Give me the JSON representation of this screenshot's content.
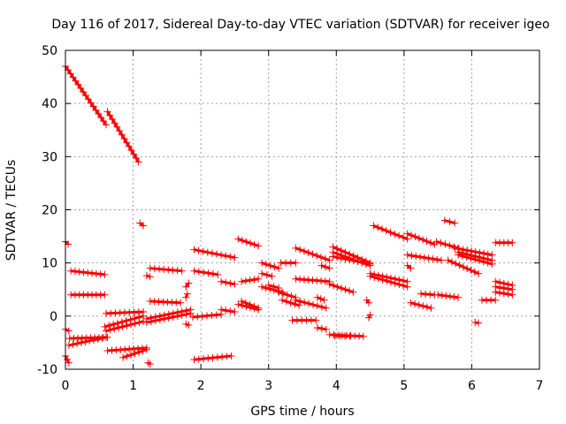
{
  "chart_data": {
    "type": "scatter",
    "title": "Day 116 of 2017, Sidereal Day-to-day VTEC variation (SDTVAR) for receiver igeo",
    "xlabel": "GPS time / hours",
    "ylabel": "SDTVAR / TECUs",
    "xlim": [
      0,
      7
    ],
    "ylim": [
      -10,
      50
    ],
    "xticks": [
      0,
      1,
      2,
      3,
      4,
      5,
      6,
      7
    ],
    "yticks": [
      -10,
      0,
      10,
      20,
      30,
      40,
      50
    ],
    "xtick_labels": [
      "0",
      "1",
      "2",
      "3",
      "4",
      "5",
      "6",
      "7"
    ],
    "ytick_labels": [
      "-10",
      "0",
      "10",
      "20",
      "30",
      "40",
      "50"
    ],
    "grid": true,
    "marker": "plus",
    "color": "#ff0000",
    "segments": [
      {
        "x": [
          0.0,
          0.6
        ],
        "y": [
          47,
          36
        ]
      },
      {
        "x": [
          0.62,
          1.08
        ],
        "y": [
          38.5,
          29
        ]
      },
      {
        "x": [
          0.0,
          0.04
        ],
        "y": [
          14,
          13.5
        ]
      },
      {
        "x": [
          0.08,
          0.58
        ],
        "y": [
          8.5,
          7.8
        ]
      },
      {
        "x": [
          0.08,
          0.58
        ],
        "y": [
          4.0,
          4.0
        ]
      },
      {
        "x": [
          0.0,
          0.05
        ],
        "y": [
          -2.5,
          -2.8
        ]
      },
      {
        "x": [
          0.0,
          0.05
        ],
        "y": [
          -7.5,
          -8.8
        ]
      },
      {
        "x": [
          0.05,
          0.6
        ],
        "y": [
          -5.5,
          -4.0
        ]
      },
      {
        "x": [
          0.06,
          0.62
        ],
        "y": [
          -4.2,
          -4.0
        ]
      },
      {
        "x": [
          0.6,
          1.15
        ],
        "y": [
          -2.8,
          -1.0
        ]
      },
      {
        "x": [
          0.58,
          1.15
        ],
        "y": [
          -2.0,
          0.0
        ]
      },
      {
        "x": [
          0.6,
          1.15
        ],
        "y": [
          0.5,
          0.8
        ]
      },
      {
        "x": [
          0.62,
          1.2
        ],
        "y": [
          -6.5,
          -6.0
        ]
      },
      {
        "x": [
          0.85,
          1.2
        ],
        "y": [
          -7.8,
          -6.3
        ]
      },
      {
        "x": [
          1.1,
          1.15
        ],
        "y": [
          17.5,
          17.0
        ]
      },
      {
        "x": [
          1.22,
          1.25
        ],
        "y": [
          -8.8,
          -9.0
        ]
      },
      {
        "x": [
          1.2,
          1.85
        ],
        "y": [
          -1.2,
          0.5
        ]
      },
      {
        "x": [
          1.2,
          1.85
        ],
        "y": [
          -0.5,
          1.2
        ]
      },
      {
        "x": [
          1.25,
          1.7
        ],
        "y": [
          2.8,
          2.5
        ]
      },
      {
        "x": [
          1.25,
          1.72
        ],
        "y": [
          9.0,
          8.5
        ]
      },
      {
        "x": [
          1.2,
          1.25
        ],
        "y": [
          7.6,
          7.4
        ]
      },
      {
        "x": [
          1.78,
          1.8
        ],
        "y": [
          3.5,
          4.2
        ]
      },
      {
        "x": [
          1.78,
          1.82
        ],
        "y": [
          5.5,
          6.2
        ]
      },
      {
        "x": [
          1.78,
          1.82
        ],
        "y": [
          -1.5,
          -1.7
        ]
      },
      {
        "x": [
          1.88,
          2.3
        ],
        "y": [
          -0.2,
          0.3
        ]
      },
      {
        "x": [
          1.9,
          2.45
        ],
        "y": [
          -8.2,
          -7.5
        ]
      },
      {
        "x": [
          1.9,
          2.25
        ],
        "y": [
          8.5,
          7.8
        ]
      },
      {
        "x": [
          1.9,
          2.5
        ],
        "y": [
          12.5,
          11.0
        ]
      },
      {
        "x": [
          2.3,
          2.5
        ],
        "y": [
          6.5,
          6.0
        ]
      },
      {
        "x": [
          2.3,
          2.5
        ],
        "y": [
          1.2,
          0.8
        ]
      },
      {
        "x": [
          2.55,
          2.85
        ],
        "y": [
          14.5,
          13.2
        ]
      },
      {
        "x": [
          2.6,
          2.85
        ],
        "y": [
          6.5,
          7.0
        ]
      },
      {
        "x": [
          2.6,
          2.85
        ],
        "y": [
          2.8,
          1.5
        ]
      },
      {
        "x": [
          2.55,
          2.85
        ],
        "y": [
          2.2,
          1.2
        ]
      },
      {
        "x": [
          2.9,
          3.15
        ],
        "y": [
          10.0,
          9.0
        ]
      },
      {
        "x": [
          2.9,
          3.05
        ],
        "y": [
          8.0,
          7.5
        ]
      },
      {
        "x": [
          2.9,
          3.2
        ],
        "y": [
          5.5,
          4.5
        ]
      },
      {
        "x": [
          3.18,
          3.4
        ],
        "y": [
          10.0,
          10.0
        ]
      },
      {
        "x": [
          3.0,
          3.15
        ],
        "y": [
          5.8,
          5.3
        ]
      },
      {
        "x": [
          3.15,
          3.4
        ],
        "y": [
          4.5,
          3.5
        ]
      },
      {
        "x": [
          3.2,
          3.45
        ],
        "y": [
          3.0,
          2.0
        ]
      },
      {
        "x": [
          3.35,
          3.7
        ],
        "y": [
          -0.8,
          -0.8
        ]
      },
      {
        "x": [
          3.4,
          3.85
        ],
        "y": [
          3.0,
          1.5
        ]
      },
      {
        "x": [
          3.4,
          3.9
        ],
        "y": [
          12.8,
          10.5
        ]
      },
      {
        "x": [
          3.4,
          3.9
        ],
        "y": [
          7.0,
          6.5
        ]
      },
      {
        "x": [
          3.78,
          3.9
        ],
        "y": [
          9.5,
          9.0
        ]
      },
      {
        "x": [
          3.72,
          3.82
        ],
        "y": [
          3.5,
          3.0
        ]
      },
      {
        "x": [
          3.72,
          3.85
        ],
        "y": [
          -2.2,
          -2.5
        ]
      },
      {
        "x": [
          3.9,
          4.4
        ],
        "y": [
          -3.5,
          -3.8
        ]
      },
      {
        "x": [
          3.98,
          4.2
        ],
        "y": [
          -3.7,
          -3.8
        ]
      },
      {
        "x": [
          3.9,
          4.25
        ],
        "y": [
          6.0,
          4.5
        ]
      },
      {
        "x": [
          3.95,
          4.5
        ],
        "y": [
          13.0,
          10.0
        ]
      },
      {
        "x": [
          3.95,
          4.5
        ],
        "y": [
          12.0,
          9.5
        ]
      },
      {
        "x": [
          3.95,
          4.5
        ],
        "y": [
          11.2,
          9.8
        ]
      },
      {
        "x": [
          4.45,
          4.48
        ],
        "y": [
          3.0,
          2.5
        ]
      },
      {
        "x": [
          4.48,
          4.5
        ],
        "y": [
          -0.3,
          0.2
        ]
      },
      {
        "x": [
          4.5,
          5.05
        ],
        "y": [
          8.0,
          6.5
        ]
      },
      {
        "x": [
          4.5,
          5.05
        ],
        "y": [
          7.5,
          5.5
        ]
      },
      {
        "x": [
          4.55,
          5.05
        ],
        "y": [
          17.0,
          14.5
        ]
      },
      {
        "x": [
          5.05,
          5.1
        ],
        "y": [
          9.5,
          9.0
        ]
      },
      {
        "x": [
          5.1,
          5.4
        ],
        "y": [
          2.5,
          1.5
        ]
      },
      {
        "x": [
          5.05,
          5.45
        ],
        "y": [
          15.5,
          13.5
        ]
      },
      {
        "x": [
          5.05,
          5.55
        ],
        "y": [
          11.5,
          10.5
        ]
      },
      {
        "x": [
          5.25,
          5.45
        ],
        "y": [
          4.2,
          4.0
        ]
      },
      {
        "x": [
          5.48,
          5.8
        ],
        "y": [
          14.0,
          12.8
        ]
      },
      {
        "x": [
          5.5,
          5.8
        ],
        "y": [
          4.0,
          3.5
        ]
      },
      {
        "x": [
          5.6,
          5.75
        ],
        "y": [
          18.0,
          17.5
        ]
      },
      {
        "x": [
          5.65,
          6.1
        ],
        "y": [
          10.5,
          8.0
        ]
      },
      {
        "x": [
          5.75,
          6.3
        ],
        "y": [
          12.8,
          11.5
        ]
      },
      {
        "x": [
          5.8,
          6.3
        ],
        "y": [
          12.0,
          10.5
        ]
      },
      {
        "x": [
          5.8,
          6.3
        ],
        "y": [
          11.5,
          9.8
        ]
      },
      {
        "x": [
          6.05,
          6.1
        ],
        "y": [
          -1.2,
          -1.3
        ]
      },
      {
        "x": [
          6.15,
          6.35
        ],
        "y": [
          3.0,
          3.0
        ]
      },
      {
        "x": [
          6.35,
          6.6
        ],
        "y": [
          13.8,
          13.8
        ]
      },
      {
        "x": [
          6.35,
          6.6
        ],
        "y": [
          6.5,
          5.8
        ]
      },
      {
        "x": [
          6.35,
          6.6
        ],
        "y": [
          5.5,
          5.0
        ]
      },
      {
        "x": [
          6.35,
          6.6
        ],
        "y": [
          4.5,
          4.0
        ]
      }
    ]
  }
}
